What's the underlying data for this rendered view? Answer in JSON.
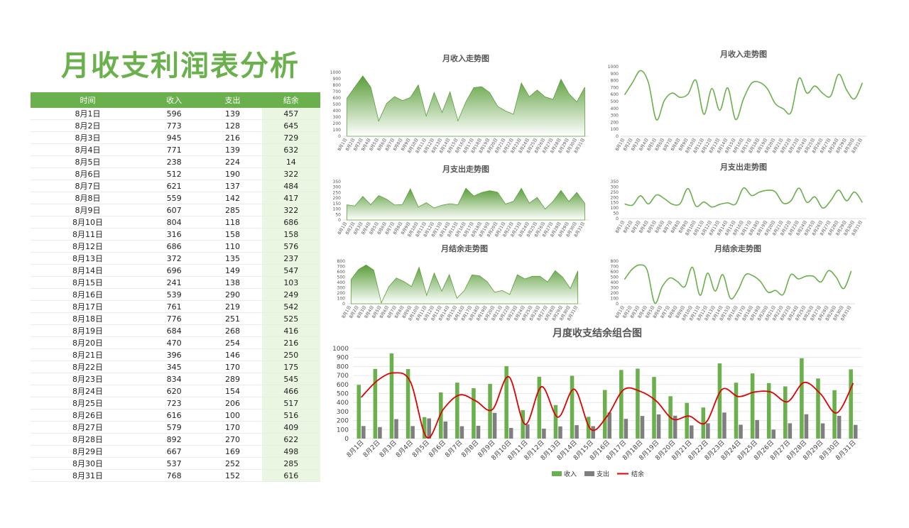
{
  "page_title": "月收支利润表分析",
  "table": {
    "headers": [
      "时间",
      "收入",
      "支出",
      "结余"
    ],
    "rows": [
      [
        "8月1日",
        "596",
        "139",
        "457"
      ],
      [
        "8月2日",
        "773",
        "128",
        "645"
      ],
      [
        "8月3日",
        "945",
        "216",
        "729"
      ],
      [
        "8月4日",
        "771",
        "139",
        "632"
      ],
      [
        "8月5日",
        "238",
        "224",
        "14"
      ],
      [
        "8月6日",
        "512",
        "190",
        "322"
      ],
      [
        "8月7日",
        "621",
        "137",
        "484"
      ],
      [
        "8月8日",
        "559",
        "142",
        "417"
      ],
      [
        "8月9日",
        "607",
        "285",
        "322"
      ],
      [
        "8月10日",
        "804",
        "118",
        "686"
      ],
      [
        "8月11日",
        "316",
        "158",
        "158"
      ],
      [
        "8月12日",
        "686",
        "110",
        "576"
      ],
      [
        "8月13日",
        "372",
        "135",
        "237"
      ],
      [
        "8月14日",
        "696",
        "149",
        "547"
      ],
      [
        "8月15日",
        "241",
        "138",
        "103"
      ],
      [
        "8月16日",
        "539",
        "290",
        "249"
      ],
      [
        "8月17日",
        "761",
        "219",
        "542"
      ],
      [
        "8月18日",
        "776",
        "251",
        "525"
      ],
      [
        "8月19日",
        "684",
        "268",
        "416"
      ],
      [
        "8月20日",
        "470",
        "254",
        "216"
      ],
      [
        "8月21日",
        "396",
        "146",
        "250"
      ],
      [
        "8月22日",
        "345",
        "170",
        "175"
      ],
      [
        "8月23日",
        "834",
        "289",
        "545"
      ],
      [
        "8月24日",
        "620",
        "154",
        "466"
      ],
      [
        "8月25日",
        "723",
        "206",
        "517"
      ],
      [
        "8月26日",
        "616",
        "100",
        "516"
      ],
      [
        "8月27日",
        "579",
        "170",
        "409"
      ],
      [
        "8月28日",
        "892",
        "270",
        "622"
      ],
      [
        "8月29日",
        "667",
        "169",
        "498"
      ],
      [
        "8月30日",
        "537",
        "252",
        "285"
      ],
      [
        "8月31日",
        "768",
        "152",
        "616"
      ]
    ]
  },
  "colors": {
    "green": "#6ab04c",
    "gray": "#7f7f7f",
    "red": "#e00000"
  },
  "chart_data": [
    {
      "type": "area",
      "title": "月收入走势图",
      "series_key": "income",
      "ylim": [
        0,
        1000
      ],
      "yticks": [
        0,
        100,
        200,
        300,
        400,
        500,
        600,
        700,
        800,
        900,
        1000
      ]
    },
    {
      "type": "line",
      "title": "月收入走势图",
      "series_key": "income",
      "ylim": [
        0,
        1000
      ],
      "yticks": [
        0,
        100,
        200,
        300,
        400,
        500,
        600,
        700,
        800,
        900,
        1000
      ]
    },
    {
      "type": "area",
      "title": "月支出走势图",
      "series_key": "expense",
      "ylim": [
        0,
        350
      ],
      "yticks": [
        0,
        50,
        100,
        150,
        200,
        250,
        300,
        350
      ]
    },
    {
      "type": "line",
      "title": "月支出走势图",
      "series_key": "expense",
      "ylim": [
        0,
        350
      ],
      "yticks": [
        0,
        50,
        100,
        150,
        200,
        250,
        300,
        350
      ]
    },
    {
      "type": "area",
      "title": "月结余走势图",
      "series_key": "balance",
      "ylim": [
        0,
        800
      ],
      "yticks": [
        0,
        100,
        200,
        300,
        400,
        500,
        600,
        700,
        800
      ]
    },
    {
      "type": "line",
      "title": "月结余走势图",
      "series_key": "balance",
      "ylim": [
        0,
        800
      ],
      "yticks": [
        0,
        100,
        200,
        300,
        400,
        500,
        600,
        700,
        800
      ]
    },
    {
      "type": "bar+line",
      "title": "月度收支结余组合图",
      "ylim": [
        0,
        1000
      ],
      "yticks": [
        0,
        100,
        200,
        300,
        400,
        500,
        600,
        700,
        800,
        900,
        1000
      ],
      "legend": [
        "收入",
        "支出",
        "结余"
      ],
      "legend_position": "bottom"
    }
  ],
  "series": {
    "categories": [
      "8月1日",
      "8月2日",
      "8月3日",
      "8月4日",
      "8月5日",
      "8月6日",
      "8月7日",
      "8月8日",
      "8月9日",
      "8月10日",
      "8月11日",
      "8月12日",
      "8月13日",
      "8月14日",
      "8月15日",
      "8月16日",
      "8月17日",
      "8月18日",
      "8月19日",
      "8月20日",
      "8月21日",
      "8月22日",
      "8月23日",
      "8月24日",
      "8月25日",
      "8月26日",
      "8月27日",
      "8月28日",
      "8月29日",
      "8月30日",
      "8月31日"
    ],
    "income": [
      596,
      773,
      945,
      771,
      238,
      512,
      621,
      559,
      607,
      804,
      316,
      686,
      372,
      696,
      241,
      539,
      761,
      776,
      684,
      470,
      396,
      345,
      834,
      620,
      723,
      616,
      579,
      892,
      667,
      537,
      768
    ],
    "expense": [
      139,
      128,
      216,
      139,
      224,
      190,
      137,
      142,
      285,
      118,
      158,
      110,
      135,
      149,
      138,
      290,
      219,
      251,
      268,
      254,
      146,
      170,
      289,
      154,
      206,
      100,
      170,
      270,
      169,
      252,
      152
    ],
    "balance": [
      457,
      645,
      729,
      632,
      14,
      322,
      484,
      417,
      322,
      686,
      158,
      576,
      237,
      547,
      103,
      249,
      542,
      525,
      416,
      216,
      250,
      175,
      545,
      466,
      517,
      516,
      409,
      622,
      498,
      285,
      616
    ]
  }
}
